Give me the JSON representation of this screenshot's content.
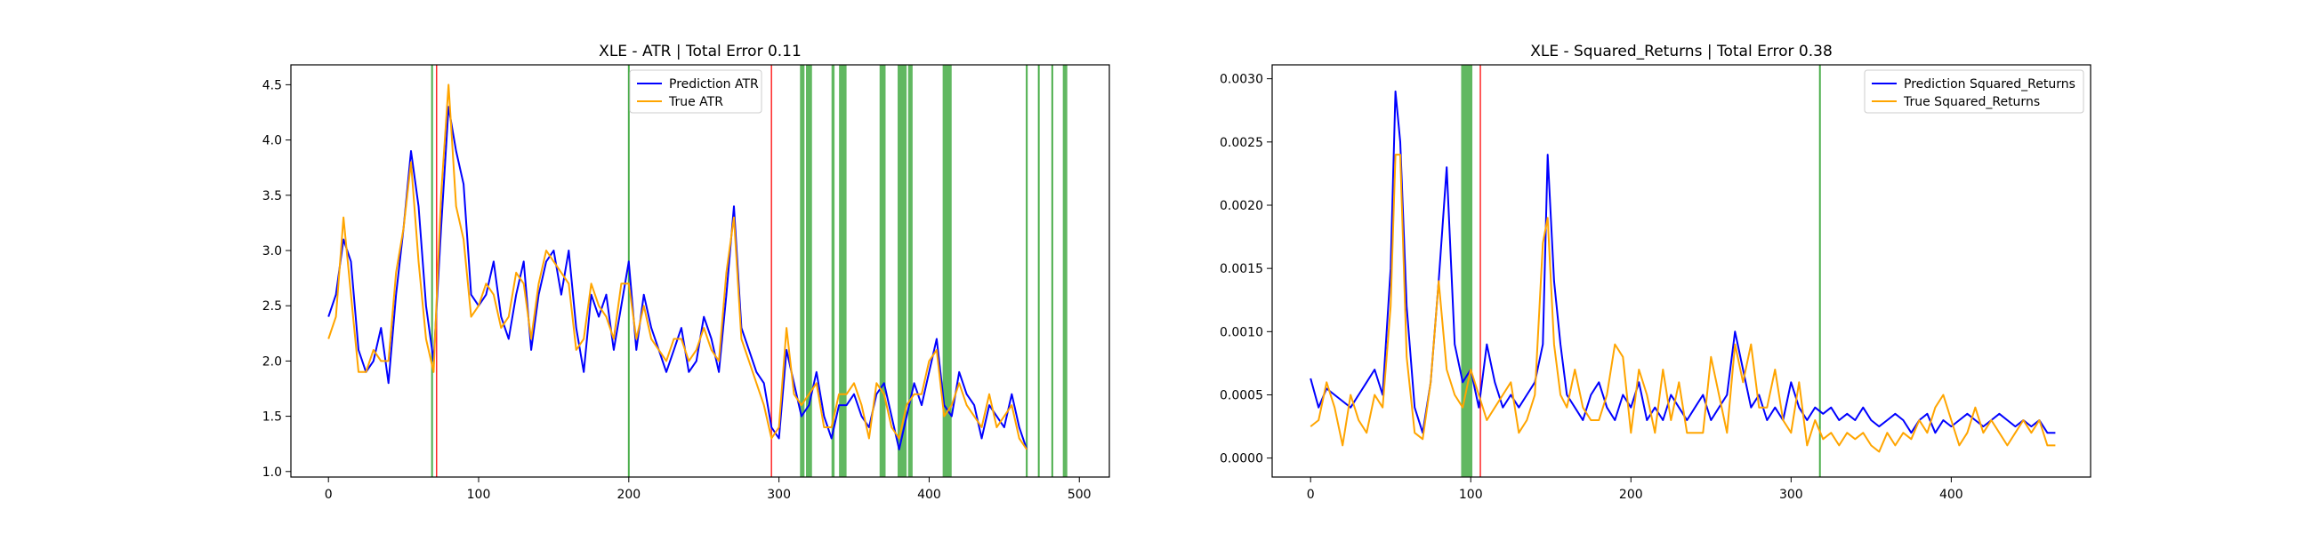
{
  "chart_data": [
    {
      "type": "line",
      "title": "XLE - ATR | Total Error 0.11",
      "xlabel": "",
      "ylabel": "",
      "xlim": [
        -25,
        520
      ],
      "ylim": [
        0.95,
        4.68
      ],
      "xticks": [
        0,
        100,
        200,
        300,
        400,
        500
      ],
      "xtick_labels": [
        "0",
        "100",
        "200",
        "300",
        "400",
        "500"
      ],
      "yticks": [
        1.0,
        1.5,
        2.0,
        2.5,
        3.0,
        3.5,
        4.0,
        4.5
      ],
      "ytick_labels": [
        "1.0",
        "1.5",
        "2.0",
        "2.5",
        "3.0",
        "3.5",
        "4.0",
        "4.5"
      ],
      "grid": false,
      "legend": "top-center",
      "series": [
        {
          "name": "Prediction ATR",
          "color": "#0000ff",
          "x": [
            0,
            5,
            10,
            15,
            20,
            25,
            30,
            35,
            40,
            45,
            50,
            55,
            60,
            65,
            70,
            75,
            80,
            85,
            90,
            95,
            100,
            105,
            110,
            115,
            120,
            125,
            130,
            135,
            140,
            145,
            150,
            155,
            160,
            165,
            170,
            175,
            180,
            185,
            190,
            195,
            200,
            205,
            210,
            215,
            220,
            225,
            230,
            235,
            240,
            245,
            250,
            255,
            260,
            265,
            270,
            275,
            280,
            285,
            290,
            295,
            300,
            305,
            310,
            315,
            320,
            325,
            330,
            335,
            340,
            345,
            350,
            355,
            360,
            365,
            370,
            375,
            380,
            385,
            390,
            395,
            400,
            405,
            410,
            415,
            420,
            425,
            430,
            435,
            440,
            445,
            450,
            455,
            460,
            465
          ],
          "values": [
            2.4,
            2.6,
            3.1,
            2.9,
            2.1,
            1.9,
            2.0,
            2.3,
            1.8,
            2.6,
            3.2,
            3.9,
            3.4,
            2.5,
            2.0,
            3.2,
            4.3,
            3.9,
            3.6,
            2.6,
            2.5,
            2.6,
            2.9,
            2.4,
            2.2,
            2.6,
            2.9,
            2.1,
            2.6,
            2.9,
            3.0,
            2.6,
            3.0,
            2.3,
            1.9,
            2.6,
            2.4,
            2.6,
            2.1,
            2.5,
            2.9,
            2.1,
            2.6,
            2.3,
            2.1,
            1.9,
            2.1,
            2.3,
            1.9,
            2.0,
            2.4,
            2.2,
            1.9,
            2.6,
            3.4,
            2.3,
            2.1,
            1.9,
            1.8,
            1.4,
            1.3,
            2.1,
            1.8,
            1.5,
            1.6,
            1.9,
            1.5,
            1.3,
            1.6,
            1.6,
            1.7,
            1.5,
            1.4,
            1.7,
            1.8,
            1.5,
            1.2,
            1.5,
            1.8,
            1.6,
            1.9,
            2.2,
            1.6,
            1.5,
            1.9,
            1.7,
            1.6,
            1.3,
            1.6,
            1.5,
            1.4,
            1.7,
            1.4,
            1.2
          ]
        },
        {
          "name": "True ATR",
          "color": "#ffa500",
          "x": [
            0,
            5,
            10,
            15,
            20,
            25,
            30,
            35,
            40,
            45,
            50,
            55,
            60,
            65,
            70,
            75,
            80,
            85,
            90,
            95,
            100,
            105,
            110,
            115,
            120,
            125,
            130,
            135,
            140,
            145,
            150,
            155,
            160,
            165,
            170,
            175,
            180,
            185,
            190,
            195,
            200,
            205,
            210,
            215,
            220,
            225,
            230,
            235,
            240,
            245,
            250,
            255,
            260,
            265,
            270,
            275,
            280,
            285,
            290,
            295,
            300,
            305,
            310,
            315,
            320,
            325,
            330,
            335,
            340,
            345,
            350,
            355,
            360,
            365,
            370,
            375,
            380,
            385,
            390,
            395,
            400,
            405,
            410,
            415,
            420,
            425,
            430,
            435,
            440,
            445,
            450,
            455,
            460,
            465
          ],
          "values": [
            2.2,
            2.4,
            3.3,
            2.6,
            1.9,
            1.9,
            2.1,
            2.0,
            2.0,
            2.8,
            3.2,
            3.8,
            2.9,
            2.2,
            1.9,
            3.5,
            4.5,
            3.4,
            3.1,
            2.4,
            2.5,
            2.7,
            2.6,
            2.3,
            2.4,
            2.8,
            2.7,
            2.2,
            2.7,
            3.0,
            2.9,
            2.8,
            2.7,
            2.1,
            2.2,
            2.7,
            2.5,
            2.4,
            2.2,
            2.7,
            2.7,
            2.2,
            2.5,
            2.2,
            2.1,
            2.0,
            2.2,
            2.2,
            2.0,
            2.1,
            2.3,
            2.1,
            2.0,
            2.8,
            3.3,
            2.2,
            2.0,
            1.8,
            1.6,
            1.3,
            1.4,
            2.3,
            1.7,
            1.6,
            1.7,
            1.8,
            1.4,
            1.4,
            1.7,
            1.7,
            1.8,
            1.6,
            1.3,
            1.8,
            1.7,
            1.4,
            1.3,
            1.6,
            1.7,
            1.7,
            2.0,
            2.1,
            1.5,
            1.6,
            1.8,
            1.6,
            1.5,
            1.4,
            1.7,
            1.4,
            1.5,
            1.6,
            1.3,
            1.2
          ]
        }
      ],
      "vertical_lines": [
        {
          "x": 69,
          "color": "#2ca02c"
        },
        {
          "x": 72,
          "color": "#ff0000"
        },
        {
          "x": 200,
          "color": "#2ca02c"
        },
        {
          "x": 295,
          "color": "#ff0000"
        },
        {
          "x": 465,
          "color": "#2ca02c"
        },
        {
          "x": 473,
          "color": "#2ca02c"
        },
        {
          "x": 482,
          "color": "#2ca02c"
        }
      ],
      "vertical_spans": [
        {
          "x0": 314,
          "x1": 317,
          "color": "#2ca02c"
        },
        {
          "x0": 318,
          "x1": 322,
          "color": "#2ca02c"
        },
        {
          "x0": 335,
          "x1": 337,
          "color": "#2ca02c"
        },
        {
          "x0": 340,
          "x1": 345,
          "color": "#2ca02c"
        },
        {
          "x0": 367,
          "x1": 371,
          "color": "#2ca02c"
        },
        {
          "x0": 379,
          "x1": 385,
          "color": "#2ca02c"
        },
        {
          "x0": 386,
          "x1": 389,
          "color": "#2ca02c"
        },
        {
          "x0": 409,
          "x1": 415,
          "color": "#2ca02c"
        },
        {
          "x0": 489,
          "x1": 492,
          "color": "#2ca02c"
        }
      ]
    },
    {
      "type": "line",
      "title": "XLE - Squared_Returns | Total Error 0.38",
      "xlabel": "",
      "ylabel": "",
      "xlim": [
        -24,
        487
      ],
      "ylim": [
        -0.00015,
        0.00311
      ],
      "xticks": [
        0,
        100,
        200,
        300,
        400
      ],
      "xtick_labels": [
        "0",
        "100",
        "200",
        "300",
        "400"
      ],
      "yticks": [
        0.0,
        0.0005,
        0.001,
        0.0015,
        0.002,
        0.0025,
        0.003
      ],
      "ytick_labels": [
        "0.0000",
        "0.0005",
        "0.0010",
        "0.0015",
        "0.0020",
        "0.0025",
        "0.0030"
      ],
      "grid": false,
      "legend": "top-right",
      "series": [
        {
          "name": "Prediction Squared_Returns",
          "color": "#0000ff",
          "x": [
            0,
            5,
            10,
            15,
            20,
            25,
            30,
            35,
            40,
            45,
            50,
            53,
            56,
            60,
            65,
            70,
            75,
            80,
            85,
            90,
            95,
            100,
            105,
            110,
            115,
            120,
            125,
            130,
            135,
            140,
            145,
            148,
            152,
            156,
            160,
            165,
            170,
            175,
            180,
            185,
            190,
            195,
            200,
            205,
            210,
            215,
            220,
            225,
            230,
            235,
            240,
            245,
            250,
            255,
            260,
            265,
            270,
            275,
            280,
            285,
            290,
            295,
            300,
            305,
            310,
            315,
            320,
            325,
            330,
            335,
            340,
            345,
            350,
            355,
            360,
            365,
            370,
            375,
            380,
            385,
            390,
            395,
            400,
            405,
            410,
            415,
            420,
            425,
            430,
            435,
            440,
            445,
            450,
            455,
            460,
            465
          ],
          "values": [
            0.00063,
            0.0004,
            0.00055,
            0.0005,
            0.00045,
            0.0004,
            0.0005,
            0.0006,
            0.0007,
            0.0005,
            0.0015,
            0.0029,
            0.0025,
            0.0012,
            0.0004,
            0.0002,
            0.0006,
            0.0014,
            0.0023,
            0.0009,
            0.0006,
            0.0007,
            0.0004,
            0.0009,
            0.0006,
            0.0004,
            0.0005,
            0.0004,
            0.0005,
            0.0006,
            0.0009,
            0.0024,
            0.0014,
            0.0009,
            0.0005,
            0.0004,
            0.0003,
            0.0005,
            0.0006,
            0.0004,
            0.0003,
            0.0005,
            0.0004,
            0.0006,
            0.0003,
            0.0004,
            0.0003,
            0.0005,
            0.0004,
            0.0003,
            0.0004,
            0.0005,
            0.0003,
            0.0004,
            0.0005,
            0.001,
            0.0007,
            0.0004,
            0.0005,
            0.0003,
            0.0004,
            0.0003,
            0.0006,
            0.0004,
            0.0003,
            0.0004,
            0.00035,
            0.0004,
            0.0003,
            0.00035,
            0.0003,
            0.0004,
            0.0003,
            0.00025,
            0.0003,
            0.00035,
            0.0003,
            0.0002,
            0.0003,
            0.00035,
            0.0002,
            0.0003,
            0.00025,
            0.0003,
            0.00035,
            0.0003,
            0.00025,
            0.0003,
            0.00035,
            0.0003,
            0.00025,
            0.0003,
            0.00025,
            0.0003,
            0.0002,
            0.0002
          ]
        },
        {
          "name": "True Squared_Returns",
          "color": "#ffa500",
          "x": [
            0,
            5,
            10,
            15,
            20,
            25,
            30,
            35,
            40,
            45,
            50,
            53,
            56,
            60,
            65,
            70,
            75,
            80,
            85,
            90,
            95,
            100,
            105,
            110,
            115,
            120,
            125,
            130,
            135,
            140,
            145,
            148,
            152,
            156,
            160,
            165,
            170,
            175,
            180,
            185,
            190,
            195,
            200,
            205,
            210,
            215,
            220,
            225,
            230,
            235,
            240,
            245,
            250,
            255,
            260,
            265,
            270,
            275,
            280,
            285,
            290,
            295,
            300,
            305,
            310,
            315,
            320,
            325,
            330,
            335,
            340,
            345,
            350,
            355,
            360,
            365,
            370,
            375,
            380,
            385,
            390,
            395,
            400,
            405,
            410,
            415,
            420,
            425,
            430,
            435,
            440,
            445,
            450,
            455,
            460,
            465
          ],
          "values": [
            0.00025,
            0.0003,
            0.0006,
            0.0004,
            0.0001,
            0.0005,
            0.0003,
            0.0002,
            0.0005,
            0.0004,
            0.0012,
            0.0024,
            0.0024,
            0.0008,
            0.0002,
            0.00015,
            0.0006,
            0.0014,
            0.0007,
            0.0005,
            0.0004,
            0.0007,
            0.0005,
            0.0003,
            0.0004,
            0.0005,
            0.0006,
            0.0002,
            0.0003,
            0.0005,
            0.0017,
            0.0019,
            0.0009,
            0.0005,
            0.0004,
            0.0007,
            0.0004,
            0.0003,
            0.0003,
            0.0005,
            0.0009,
            0.0008,
            0.0002,
            0.0007,
            0.0005,
            0.0002,
            0.0007,
            0.0003,
            0.0006,
            0.0002,
            0.0002,
            0.0002,
            0.0008,
            0.0005,
            0.0002,
            0.0009,
            0.0006,
            0.0009,
            0.0004,
            0.0004,
            0.0007,
            0.0003,
            0.0002,
            0.0006,
            0.0001,
            0.0003,
            0.00015,
            0.0002,
            0.0001,
            0.0002,
            0.00015,
            0.0002,
            0.0001,
            5e-05,
            0.0002,
            0.0001,
            0.0002,
            0.00015,
            0.0003,
            0.0002,
            0.0004,
            0.0005,
            0.0003,
            0.0001,
            0.0002,
            0.0004,
            0.0002,
            0.0003,
            0.0002,
            0.0001,
            0.0002,
            0.0003,
            0.0002,
            0.0003,
            0.0001,
            0.0001
          ]
        }
      ],
      "vertical_lines": [
        {
          "x": 106,
          "color": "#ff0000"
        },
        {
          "x": 318,
          "color": "#2ca02c"
        }
      ],
      "vertical_spans": [
        {
          "x0": 94,
          "x1": 101,
          "color": "#2ca02c"
        }
      ]
    }
  ]
}
